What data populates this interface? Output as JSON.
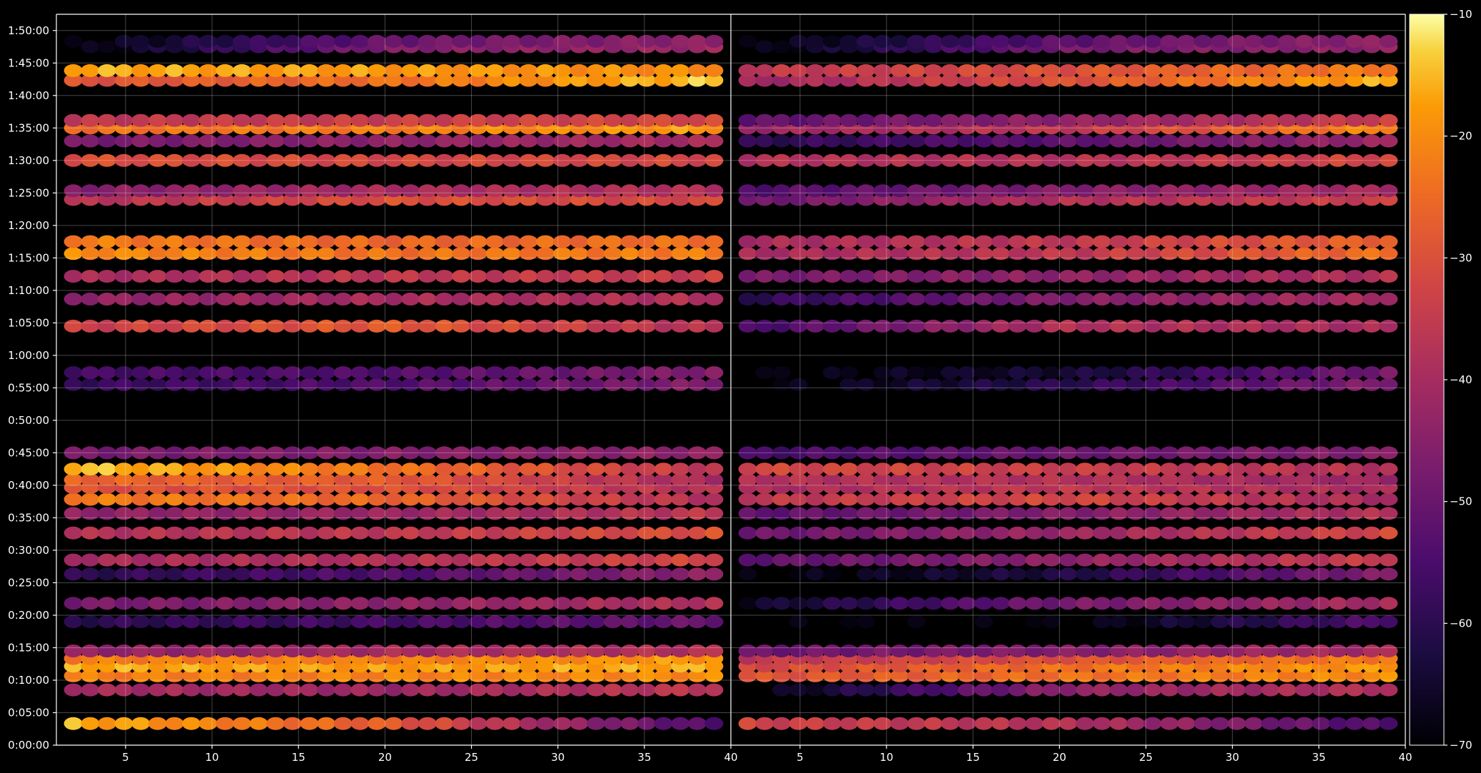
{
  "chart_data": {
    "type": "heatmap",
    "description_panels": [
      "left",
      "right"
    ],
    "x": {
      "range_left": [
        1,
        40
      ],
      "range_right": [
        1,
        40
      ],
      "tick_values": [
        5,
        10,
        15,
        20,
        25,
        30,
        35
      ],
      "tick_labels_left": [
        "5",
        "10",
        "15",
        "20",
        "25",
        "30",
        "35",
        "40"
      ],
      "tick_labels_right": [
        "5",
        "10",
        "15",
        "20",
        "25",
        "30",
        "35",
        "40"
      ]
    },
    "y": {
      "range_seconds": [
        0,
        6750
      ],
      "tick_labels": [
        "0:00:00",
        "0:05:00",
        "0:10:00",
        "0:15:00",
        "0:20:00",
        "0:25:00",
        "0:30:00",
        "0:35:00",
        "0:40:00",
        "0:45:00",
        "0:50:00",
        "0:55:00",
        "1:00:00",
        "1:05:00",
        "1:10:00",
        "1:15:00",
        "1:20:00",
        "1:25:00",
        "1:30:00",
        "1:35:00",
        "1:40:00",
        "1:45:00",
        "1:50:00"
      ]
    },
    "colorbar": {
      "range": [
        -70,
        -10
      ],
      "tick_labels": [
        "−10",
        "−20",
        "−30",
        "−40",
        "−50",
        "−60",
        "−70"
      ],
      "colormap": "inferno"
    },
    "grid": true,
    "rows": [
      {
        "t": 200,
        "left": [
          -16,
          -28,
          -55
        ],
        "right": [
          -33,
          -38,
          -55
        ]
      },
      {
        "t": 510,
        "left": [
          -40,
          -42,
          -36
        ],
        "right": [
          -70,
          -44,
          -38
        ]
      },
      {
        "t": 640,
        "left": [
          -22,
          -21,
          -20
        ],
        "right": [
          -30,
          -24,
          -20
        ]
      },
      {
        "t": 730,
        "left": [
          -16,
          -18,
          -16
        ],
        "right": [
          -32,
          -24,
          -18
        ]
      },
      {
        "t": 800,
        "left": [
          -22,
          -22,
          -18
        ],
        "right": [
          -36,
          -30,
          -22
        ]
      },
      {
        "t": 870,
        "left": [
          -44,
          -40,
          -38
        ],
        "right": [
          -50,
          -46,
          -40
        ]
      },
      {
        "t": 1140,
        "left": [
          -60,
          -56,
          -50
        ],
        "right": [
          -70,
          -70,
          -54
        ]
      },
      {
        "t": 1310,
        "left": [
          -48,
          -44,
          -38
        ],
        "right": [
          -66,
          -48,
          -40
        ]
      },
      {
        "t": 1580,
        "left": [
          -60,
          -54,
          -44
        ],
        "right": [
          -70,
          -62,
          -46
        ]
      },
      {
        "t": 1710,
        "left": [
          -40,
          -38,
          -32
        ],
        "right": [
          -52,
          -44,
          -34
        ]
      },
      {
        "t": 1960,
        "left": [
          -38,
          -36,
          -30
        ],
        "right": [
          -50,
          -42,
          -32
        ]
      },
      {
        "t": 2140,
        "left": [
          -44,
          -42,
          -36
        ],
        "right": [
          -52,
          -46,
          -38
        ]
      },
      {
        "t": 2270,
        "left": [
          -22,
          -26,
          -38
        ],
        "right": [
          -36,
          -32,
          -40
        ]
      },
      {
        "t": 2380,
        "left": [
          -30,
          -30,
          -38
        ],
        "right": [
          -40,
          -36,
          -40
        ]
      },
      {
        "t": 2450,
        "left": [
          -26,
          -28,
          -40
        ],
        "right": [
          -38,
          -38,
          -42
        ]
      },
      {
        "t": 2550,
        "left": [
          -14,
          -24,
          -36
        ],
        "right": [
          -32,
          -34,
          -38
        ]
      },
      {
        "t": 2700,
        "left": [
          -48,
          -46,
          -44
        ],
        "right": [
          -56,
          -50,
          -46
        ]
      },
      {
        "t": 3330,
        "left": [
          -58,
          -54,
          -46
        ],
        "right": [
          -70,
          -60,
          -46
        ]
      },
      {
        "t": 3440,
        "left": [
          -56,
          -54,
          -46
        ],
        "right": [
          -70,
          -64,
          -48
        ]
      },
      {
        "t": 3870,
        "left": [
          -34,
          -28,
          -38
        ],
        "right": [
          -56,
          -38,
          -40
        ]
      },
      {
        "t": 4120,
        "left": [
          -44,
          -40,
          -38
        ],
        "right": [
          -60,
          -46,
          -40
        ]
      },
      {
        "t": 4330,
        "left": [
          -40,
          -36,
          -34
        ],
        "right": [
          -48,
          -44,
          -38
        ]
      },
      {
        "t": 4540,
        "left": [
          -20,
          -24,
          -22
        ],
        "right": [
          -40,
          -36,
          -24
        ]
      },
      {
        "t": 4650,
        "left": [
          -22,
          -26,
          -24
        ],
        "right": [
          -40,
          -36,
          -26
        ]
      },
      {
        "t": 5040,
        "left": [
          -38,
          -30,
          -32
        ],
        "right": [
          -50,
          -38,
          -34
        ]
      },
      {
        "t": 5120,
        "left": [
          -46,
          -40,
          -38
        ],
        "right": [
          -54,
          -46,
          -40
        ]
      },
      {
        "t": 5400,
        "left": [
          -30,
          -32,
          -32
        ],
        "right": [
          -38,
          -38,
          -32
        ]
      },
      {
        "t": 5580,
        "left": [
          -48,
          -44,
          -40
        ],
        "right": [
          -60,
          -52,
          -42
        ]
      },
      {
        "t": 5700,
        "left": [
          -24,
          -22,
          -18
        ],
        "right": [
          -42,
          -36,
          -20
        ]
      },
      {
        "t": 5770,
        "left": [
          -36,
          -34,
          -32
        ],
        "right": [
          -52,
          -44,
          -34
        ]
      },
      {
        "t": 6140,
        "left": [
          -30,
          -24,
          -14
        ],
        "right": [
          -42,
          -30,
          -16
        ]
      },
      {
        "t": 6230,
        "left": [
          -16,
          -18,
          -20
        ],
        "right": [
          -36,
          -30,
          -22
        ]
      },
      {
        "t": 6450,
        "left": [
          -70,
          -46,
          -42
        ],
        "right": [
          -70,
          -48,
          -44
        ]
      },
      {
        "t": 6500,
        "left": [
          -70,
          -50,
          -44
        ],
        "right": [
          -70,
          -52,
          -44
        ]
      }
    ]
  }
}
